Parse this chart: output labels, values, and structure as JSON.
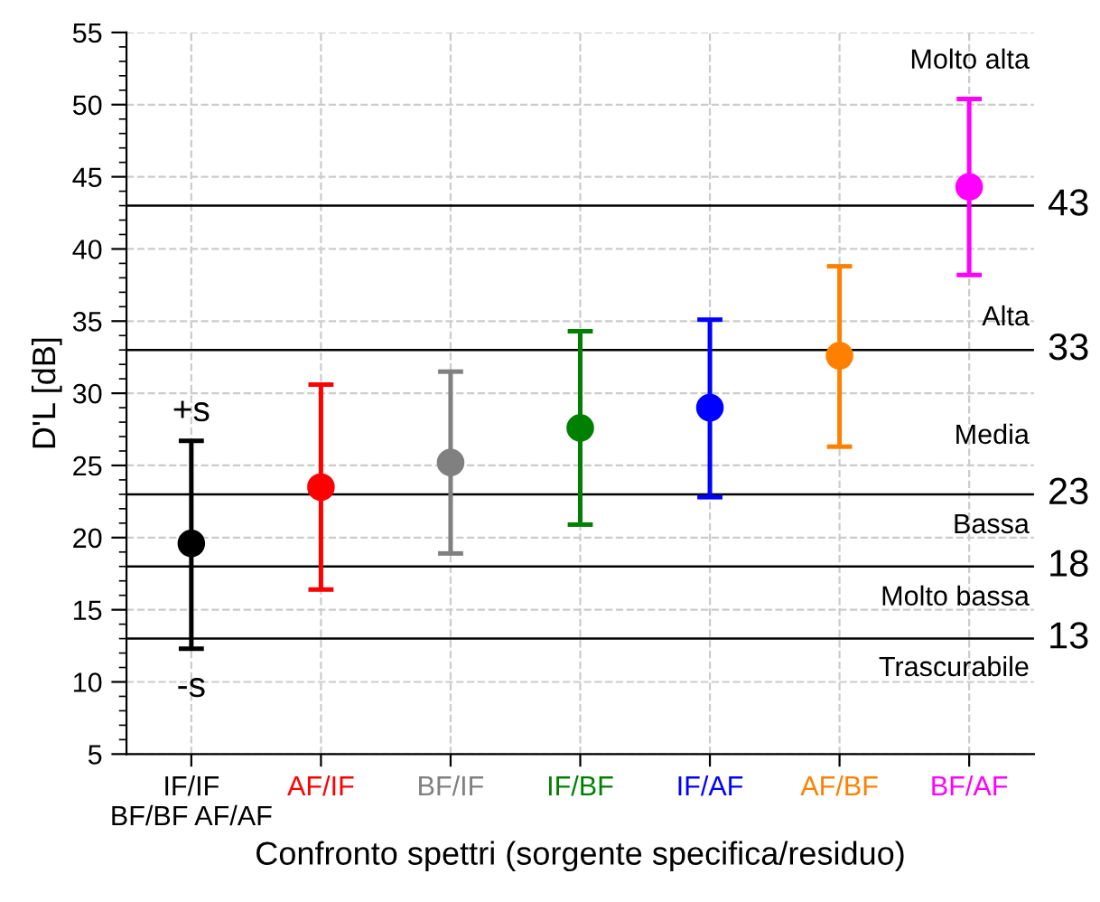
{
  "chart_data": {
    "type": "scatter",
    "xlabel": "Confronto spettri (sorgente specifica/residuo)",
    "ylabel": "D'L [dB]",
    "categories": [
      "IF/IF\nBF/BF AF/AF",
      "AF/IF",
      "BF/IF",
      "IF/BF",
      "IF/AF",
      "AF/BF",
      "BF/AF"
    ],
    "values": [
      19.6,
      23.5,
      25.2,
      27.6,
      29.0,
      32.6,
      44.3
    ],
    "errors": [
      [
        12.3,
        26.7
      ],
      [
        16.4,
        30.6
      ],
      [
        18.9,
        31.5
      ],
      [
        20.9,
        34.3
      ],
      [
        22.8,
        35.1
      ],
      [
        26.3,
        38.8
      ],
      [
        38.2,
        50.4
      ]
    ],
    "colors": [
      "#000000",
      "#ff0000",
      "#808080",
      "#008000",
      "#0000ff",
      "#ff8000",
      "#ff00ff"
    ],
    "marker": "circle",
    "grid": true,
    "ylim": [
      5,
      55
    ],
    "yticks": [
      5,
      10,
      15,
      20,
      25,
      30,
      35,
      40,
      45,
      50,
      55
    ],
    "ref_lines": [
      {
        "axis": "y",
        "value": 13,
        "label": "13",
        "color": "#000000"
      },
      {
        "axis": "y",
        "value": 18,
        "label": "18",
        "color": "#000000"
      },
      {
        "axis": "y",
        "value": 23,
        "label": "23",
        "color": "#000000"
      },
      {
        "axis": "y",
        "value": 33,
        "label": "33",
        "color": "#000000"
      },
      {
        "axis": "y",
        "value": 43,
        "label": "43",
        "color": "#000000"
      }
    ],
    "annotations": [
      "Molto alta",
      "Alta",
      "Media",
      "Bassa",
      "Molto bassa",
      "Trascurabile",
      "+s",
      "-s"
    ]
  }
}
